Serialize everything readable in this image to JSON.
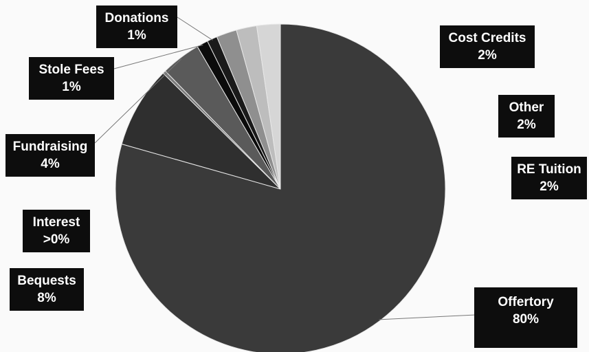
{
  "chart_data": {
    "type": "pie",
    "title": "",
    "start_angle_deg": 0,
    "direction": "clockwise",
    "slices": [
      {
        "label": "Offertory",
        "pct_label": "80%",
        "value": 79.4,
        "color": "#3a3a3a"
      },
      {
        "label": "Bequests",
        "pct_label": "8%",
        "value": 8.0,
        "color": "#2f2f2f"
      },
      {
        "label": "Interest",
        "pct_label": ">0%",
        "value": 0.3,
        "color": "#7a7a7a"
      },
      {
        "label": "Fundraising",
        "pct_label": "4%",
        "value": 3.9,
        "color": "#5a5a5a"
      },
      {
        "label": "Stole Fees",
        "pct_label": "1%",
        "value": 1.1,
        "color": "#0b0b0b"
      },
      {
        "label": "Donations",
        "pct_label": "1%",
        "value": 1.0,
        "color": "#1a1a1a"
      },
      {
        "label": "Other",
        "pct_label": "2%",
        "value": 2.0,
        "color": "#8f8f8f"
      },
      {
        "label": "RE Tuition",
        "pct_label": "2%",
        "value": 2.0,
        "color": "#bdbdbd"
      },
      {
        "label": "Cost Credits",
        "pct_label": "2%",
        "value": 2.3,
        "color": "#d6d6d6"
      }
    ]
  }
}
